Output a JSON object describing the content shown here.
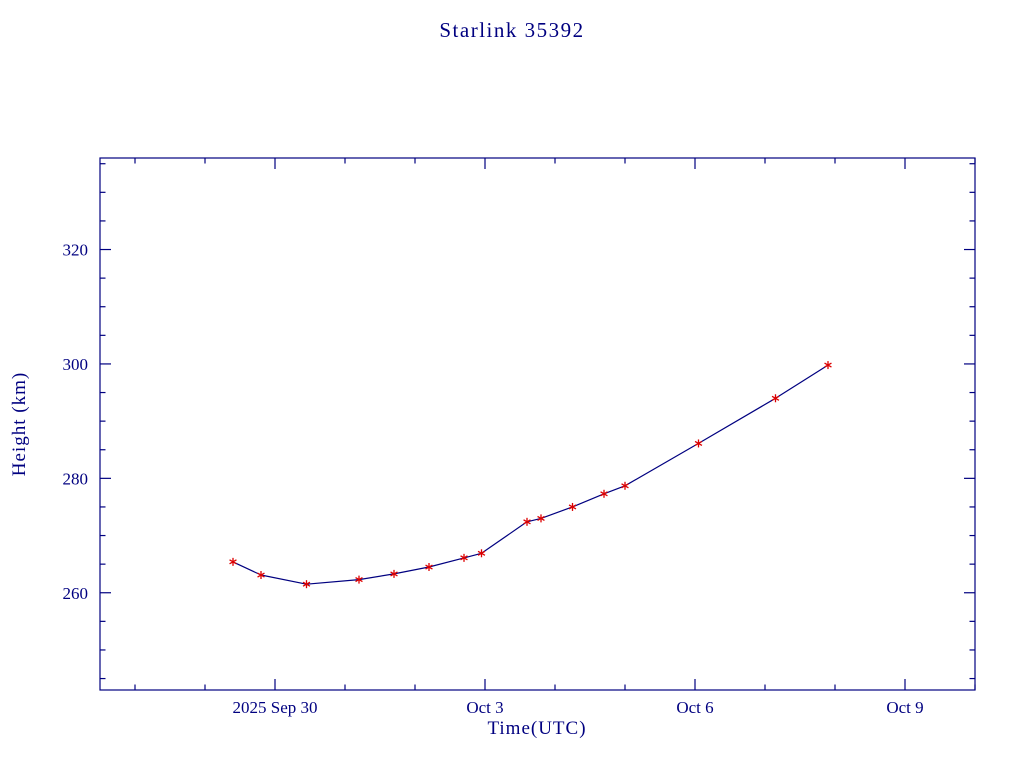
{
  "page": {
    "background": "#ffffff"
  },
  "chart_data": {
    "type": "line",
    "title": "Starlink 35392",
    "xlabel": "Time(UTC)",
    "ylabel": "Height (km)",
    "legend": "none",
    "grid": false,
    "colors": {
      "axis": "#000080",
      "text": "#000080",
      "line": "#000080",
      "marker": "#dd0000"
    },
    "x_axis": {
      "unit": "days relative to 2025 Sep 30 00:00 UTC",
      "range": [
        -2.5,
        10.0
      ],
      "major_ticks": [
        {
          "day": 0,
          "label": "2025 Sep 30"
        },
        {
          "day": 3,
          "label": "Oct  3"
        },
        {
          "day": 6,
          "label": "Oct  6"
        },
        {
          "day": 9,
          "label": "Oct  9"
        }
      ],
      "minor_tick_every_days": 1
    },
    "y_axis": {
      "range": [
        243,
        336
      ],
      "major_ticks": [
        260,
        280,
        300,
        320
      ],
      "minor_tick_every": 5
    },
    "points": [
      {
        "day": -0.6,
        "height_km": 265.4
      },
      {
        "day": -0.2,
        "height_km": 263.1
      },
      {
        "day": 0.45,
        "height_km": 261.5
      },
      {
        "day": 1.2,
        "height_km": 262.3
      },
      {
        "day": 1.7,
        "height_km": 263.3
      },
      {
        "day": 2.2,
        "height_km": 264.5
      },
      {
        "day": 2.7,
        "height_km": 266.1
      },
      {
        "day": 2.95,
        "height_km": 266.9
      },
      {
        "day": 3.6,
        "height_km": 272.4
      },
      {
        "day": 3.8,
        "height_km": 273.0
      },
      {
        "day": 4.25,
        "height_km": 275.0
      },
      {
        "day": 4.7,
        "height_km": 277.3
      },
      {
        "day": 5.0,
        "height_km": 278.7
      },
      {
        "day": 6.05,
        "height_km": 286.1
      },
      {
        "day": 7.15,
        "height_km": 294.0
      },
      {
        "day": 7.9,
        "height_km": 299.8
      }
    ]
  }
}
